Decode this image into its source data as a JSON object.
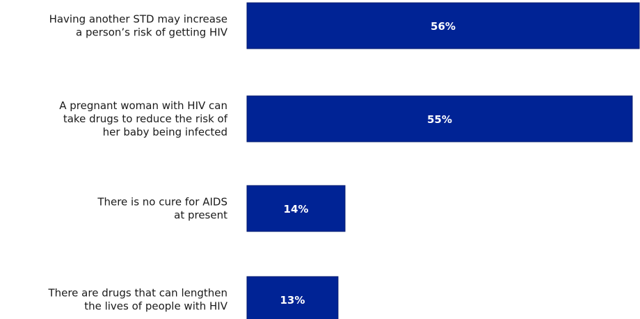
{
  "chart_data": {
    "type": "bar",
    "orientation": "horizontal",
    "categories": [
      "Having another STD may increase a person’s risk of getting HIV",
      "A pregnant woman with HIV can take drugs to reduce the risk of her baby being infected",
      "There is no cure for AIDS at present",
      "There are drugs that can lengthen the lives of people with HIV"
    ],
    "category_lines": [
      [
        "Having another STD may increase",
        "a person’s risk of getting HIV"
      ],
      [
        "A pregnant woman with HIV can",
        "take drugs to reduce the risk of",
        "her baby being infected"
      ],
      [
        "There is no cure for AIDS",
        "at present"
      ],
      [
        "There are drugs that can lengthen",
        "the lives of people with HIV"
      ]
    ],
    "values": [
      56,
      55,
      14,
      13
    ],
    "value_labels": [
      "56%",
      "55%",
      "14%",
      "13%"
    ],
    "xlim": [
      0,
      56
    ],
    "grid": false,
    "legend": "none",
    "bar_color": "#002395",
    "label_color": "#1a1a1a",
    "value_label_color": "#ffffff"
  }
}
